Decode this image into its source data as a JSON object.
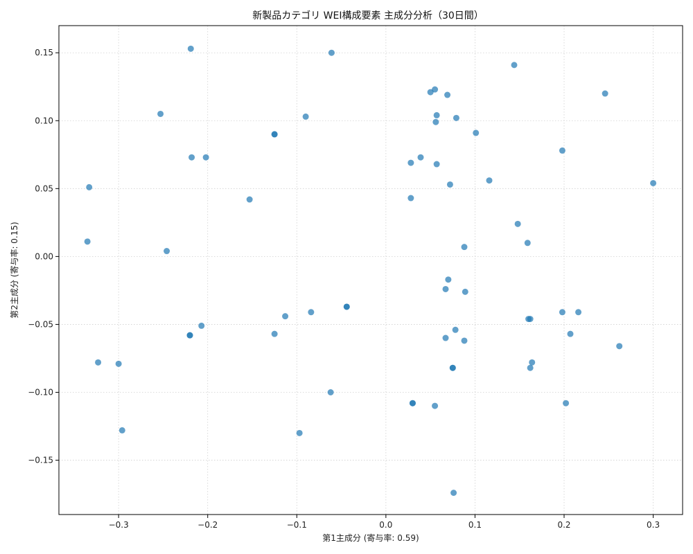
{
  "chart_data": {
    "type": "scatter",
    "title": "新製品カテゴリ WEI構成要素 主成分分析（30日間）",
    "xlabel": "第1主成分 (寄与率: 0.59)",
    "ylabel": "第2主成分 (寄与率: 0.15)",
    "xlim": [
      -0.367,
      0.333
    ],
    "ylim": [
      -0.19,
      0.17
    ],
    "xticks": [
      -0.3,
      -0.2,
      -0.1,
      0.0,
      0.1,
      0.2,
      0.3
    ],
    "xtick_labels": [
      "−0.3",
      "−0.2",
      "−0.1",
      "0.0",
      "0.1",
      "0.2",
      "0.3"
    ],
    "yticks": [
      -0.15,
      -0.1,
      -0.05,
      0.0,
      0.05,
      0.1,
      0.15
    ],
    "ytick_labels": [
      "−0.15",
      "−0.10",
      "−0.05",
      "0.00",
      "0.05",
      "0.10",
      "0.15"
    ],
    "grid": true,
    "marker_color": "#1f77b4",
    "points": [
      {
        "x": -0.219,
        "y": 0.153
      },
      {
        "x": -0.061,
        "y": 0.15
      },
      {
        "x": 0.144,
        "y": 0.141
      },
      {
        "x": 0.246,
        "y": 0.12
      },
      {
        "x": 0.055,
        "y": 0.123
      },
      {
        "x": 0.05,
        "y": 0.121
      },
      {
        "x": 0.069,
        "y": 0.119
      },
      {
        "x": -0.253,
        "y": 0.105
      },
      {
        "x": -0.09,
        "y": 0.103
      },
      {
        "x": 0.057,
        "y": 0.104
      },
      {
        "x": 0.079,
        "y": 0.102
      },
      {
        "x": 0.056,
        "y": 0.099
      },
      {
        "x": -0.125,
        "y": 0.09
      },
      {
        "x": -0.125,
        "y": 0.09
      },
      {
        "x": 0.101,
        "y": 0.091
      },
      {
        "x": 0.198,
        "y": 0.078
      },
      {
        "x": -0.218,
        "y": 0.073
      },
      {
        "x": -0.202,
        "y": 0.073
      },
      {
        "x": 0.039,
        "y": 0.073
      },
      {
        "x": 0.028,
        "y": 0.069
      },
      {
        "x": 0.057,
        "y": 0.068
      },
      {
        "x": 0.116,
        "y": 0.056
      },
      {
        "x": 0.072,
        "y": 0.053
      },
      {
        "x": 0.3,
        "y": 0.054
      },
      {
        "x": -0.333,
        "y": 0.051
      },
      {
        "x": -0.153,
        "y": 0.042
      },
      {
        "x": 0.028,
        "y": 0.043
      },
      {
        "x": 0.148,
        "y": 0.024
      },
      {
        "x": -0.335,
        "y": 0.011
      },
      {
        "x": 0.159,
        "y": 0.01
      },
      {
        "x": -0.246,
        "y": 0.004
      },
      {
        "x": 0.088,
        "y": 0.007
      },
      {
        "x": 0.07,
        "y": -0.017
      },
      {
        "x": 0.067,
        "y": -0.024
      },
      {
        "x": 0.089,
        "y": -0.026
      },
      {
        "x": -0.044,
        "y": -0.037
      },
      {
        "x": -0.044,
        "y": -0.037
      },
      {
        "x": -0.084,
        "y": -0.041
      },
      {
        "x": 0.198,
        "y": -0.041
      },
      {
        "x": 0.216,
        "y": -0.041
      },
      {
        "x": -0.113,
        "y": -0.044
      },
      {
        "x": 0.16,
        "y": -0.046
      },
      {
        "x": 0.162,
        "y": -0.046
      },
      {
        "x": -0.207,
        "y": -0.051
      },
      {
        "x": 0.078,
        "y": -0.054
      },
      {
        "x": -0.125,
        "y": -0.057
      },
      {
        "x": 0.207,
        "y": -0.057
      },
      {
        "x": -0.22,
        "y": -0.058
      },
      {
        "x": -0.22,
        "y": -0.058
      },
      {
        "x": 0.067,
        "y": -0.06
      },
      {
        "x": 0.088,
        "y": -0.062
      },
      {
        "x": 0.262,
        "y": -0.066
      },
      {
        "x": -0.323,
        "y": -0.078
      },
      {
        "x": -0.3,
        "y": -0.079
      },
      {
        "x": 0.164,
        "y": -0.078
      },
      {
        "x": 0.075,
        "y": -0.082
      },
      {
        "x": 0.075,
        "y": -0.082
      },
      {
        "x": 0.162,
        "y": -0.082
      },
      {
        "x": -0.062,
        "y": -0.1
      },
      {
        "x": 0.03,
        "y": -0.108
      },
      {
        "x": 0.03,
        "y": -0.108
      },
      {
        "x": 0.055,
        "y": -0.11
      },
      {
        "x": 0.202,
        "y": -0.108
      },
      {
        "x": -0.296,
        "y": -0.128
      },
      {
        "x": -0.097,
        "y": -0.13
      },
      {
        "x": 0.076,
        "y": -0.174
      }
    ]
  }
}
